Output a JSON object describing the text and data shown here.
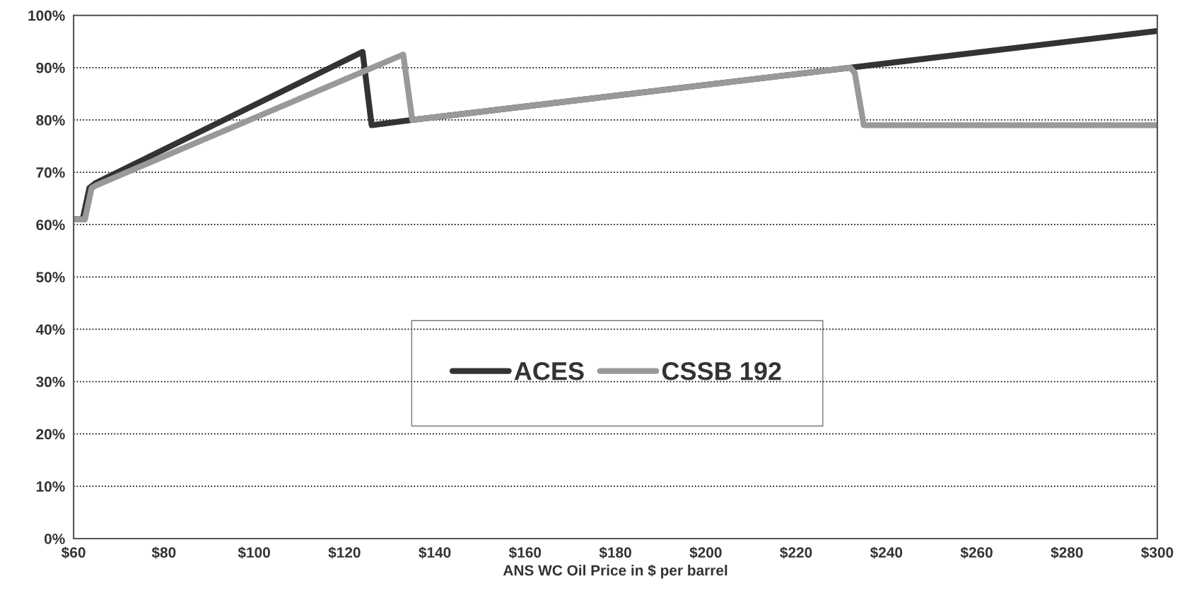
{
  "chart_data": {
    "type": "line",
    "xlabel": "ANS WC Oil Price in $ per barrel",
    "series": [
      {
        "name": "ACES",
        "color": "#333333",
        "x": [
          60,
          62,
          63.5,
          65,
          124,
          126,
          135,
          232,
          300
        ],
        "values": [
          61,
          61,
          67,
          68,
          93,
          79,
          80,
          90,
          97
        ]
      },
      {
        "name": "CSSB 192",
        "color": "#999999",
        "x": [
          60,
          62.5,
          64,
          65,
          133,
          135,
          232,
          233,
          235,
          300
        ],
        "values": [
          61,
          61,
          67,
          67.5,
          92.5,
          80,
          90,
          89,
          79,
          79
        ]
      }
    ],
    "xlim": [
      60,
      300
    ],
    "ylim": [
      0,
      100
    ],
    "xticks": [
      {
        "value": 60,
        "label": "$60"
      },
      {
        "value": 80,
        "label": "$80"
      },
      {
        "value": 100,
        "label": "$100"
      },
      {
        "value": 120,
        "label": "$120"
      },
      {
        "value": 140,
        "label": "$140"
      },
      {
        "value": 160,
        "label": "$160"
      },
      {
        "value": 180,
        "label": "$180"
      },
      {
        "value": 200,
        "label": "$200"
      },
      {
        "value": 220,
        "label": "$220"
      },
      {
        "value": 240,
        "label": "$240"
      },
      {
        "value": 260,
        "label": "$260"
      },
      {
        "value": 280,
        "label": "$280"
      },
      {
        "value": 300,
        "label": "$300"
      }
    ],
    "yticks": [
      {
        "value": 0,
        "label": "0%"
      },
      {
        "value": 10,
        "label": "10%"
      },
      {
        "value": 20,
        "label": "20%"
      },
      {
        "value": 30,
        "label": "30%"
      },
      {
        "value": 40,
        "label": "40%"
      },
      {
        "value": 50,
        "label": "50%"
      },
      {
        "value": 60,
        "label": "60%"
      },
      {
        "value": 70,
        "label": "70%"
      },
      {
        "value": 80,
        "label": "80%"
      },
      {
        "value": 90,
        "label": "90%"
      },
      {
        "value": 100,
        "label": "100%"
      }
    ],
    "grid": "y",
    "legend": "center",
    "marker": "none",
    "line_style": "solid"
  }
}
